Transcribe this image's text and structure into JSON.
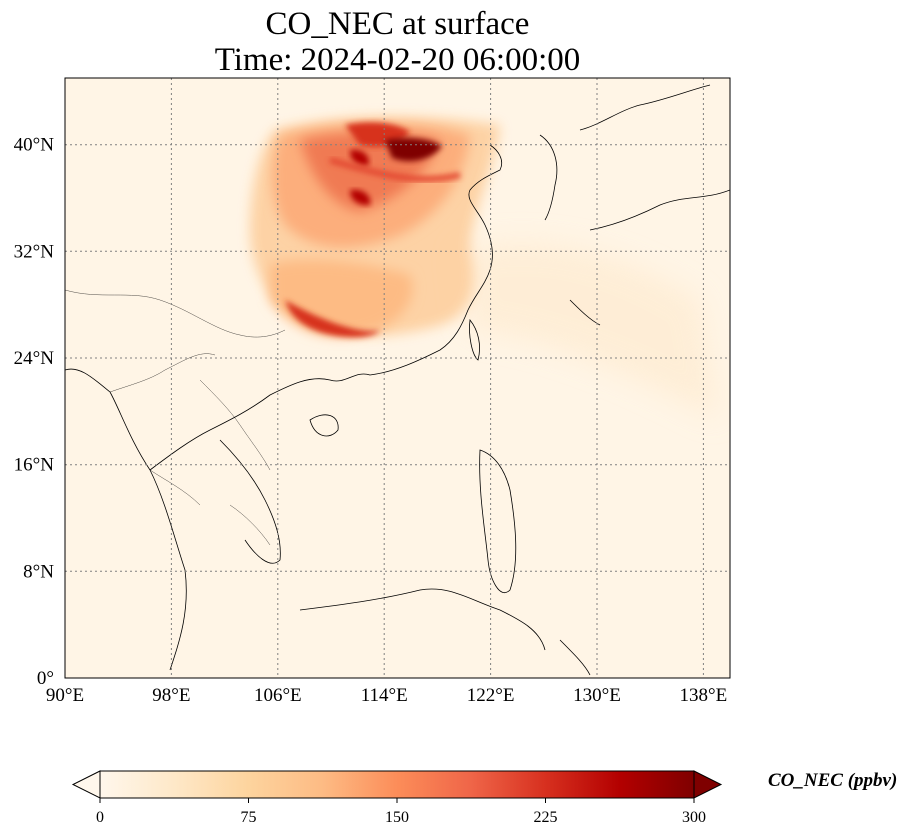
{
  "title": "CO_NEC at surface",
  "subtitle": "Time: 2024-02-20 06:00:00",
  "map": {
    "projection": "PlateCarree",
    "lon_range": [
      90,
      140
    ],
    "lat_range": [
      0,
      45
    ],
    "gridlines": true,
    "gridline_style": "dotted",
    "coastlines": true,
    "borders": true,
    "lon_ticks": [
      "90°E",
      "98°E",
      "106°E",
      "114°E",
      "122°E",
      "130°E",
      "138°E"
    ],
    "lat_ticks": [
      "0°",
      "8°N",
      "16°N",
      "24°N",
      "32°N",
      "40°N"
    ]
  },
  "colorbar": {
    "label": "CO_NEC (ppbv)",
    "cmap": "OrRd",
    "ticks": [
      "0",
      "75",
      "150",
      "225",
      "300"
    ],
    "range": [
      0,
      300
    ],
    "extend": "both",
    "orientation": "horizontal",
    "colors": [
      "#fff7ec",
      "#fee8c8",
      "#fdd49e",
      "#fdbb84",
      "#fc8d59",
      "#ef6548",
      "#d7301f",
      "#b30000",
      "#7f0000"
    ]
  },
  "colors": {
    "plume_core": "#7f0000",
    "plume_mid": "#d7301f",
    "background_field": "#fff7ec",
    "coastline": "#000000",
    "gridline": "#808080"
  }
}
